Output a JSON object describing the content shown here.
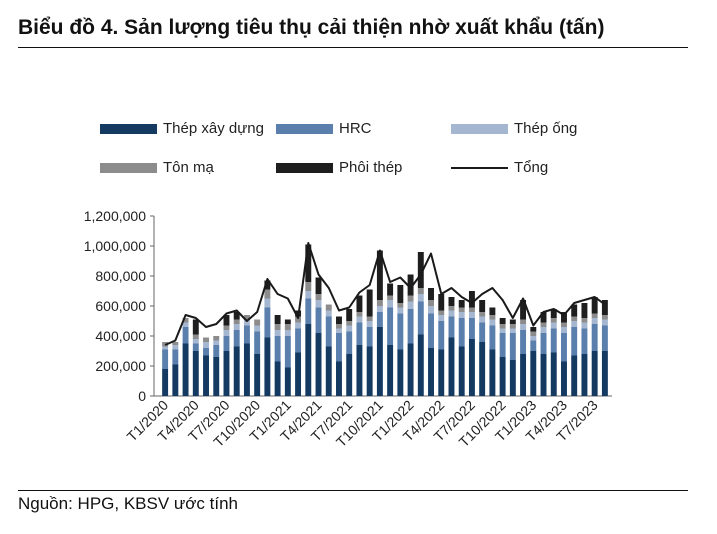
{
  "header": {
    "title": "Biểu đồ 4. Sản lượng tiêu thụ cải thiện nhờ xuất khẩu (tấn)"
  },
  "footer": {
    "source": "Nguồn: HPG, KBSV ước tính"
  },
  "colors": {
    "thep_xay_dung": "#143a62",
    "hrc": "#5a7fad",
    "thep_ong": "#a5b7d0",
    "ton_ma": "#8c8c8c",
    "phoi_thep": "#1e1e1e",
    "tong": "#1a1a1a"
  },
  "chart_data": {
    "type": "bar",
    "stacked": true,
    "title": "Biểu đồ 4. Sản lượng tiêu thụ cải thiện nhờ xuất khẩu (tấn)",
    "ylim": [
      0,
      1200000
    ],
    "yticks": [
      "1,200,000",
      "1,000,000",
      "800,000",
      "600,000",
      "400,000",
      "200,000",
      "0"
    ],
    "ytick_values": [
      1200000,
      1000000,
      800000,
      600000,
      400000,
      200000,
      0
    ],
    "xtick_labels": [
      "T1/2020",
      "T4/2020",
      "T7/2020",
      "T10/2020",
      "T1/2021",
      "T4/2021",
      "T7/2021",
      "T10/2021",
      "T1/2022",
      "T4/2022",
      "T7/2022",
      "T10/2022",
      "T1/2023",
      "T4/2023",
      "T7/2023"
    ],
    "grid": false,
    "legend_position": "top",
    "categories": [
      "T1/2020",
      "T2/2020",
      "T3/2020",
      "T4/2020",
      "T5/2020",
      "T6/2020",
      "T7/2020",
      "T8/2020",
      "T9/2020",
      "T10/2020",
      "T11/2020",
      "T12/2020",
      "T1/2021",
      "T2/2021",
      "T3/2021",
      "T4/2021",
      "T5/2021",
      "T6/2021",
      "T7/2021",
      "T8/2021",
      "T9/2021",
      "T10/2021",
      "T11/2021",
      "T12/2021",
      "T1/2022",
      "T2/2022",
      "T3/2022",
      "T4/2022",
      "T5/2022",
      "T6/2022",
      "T7/2022",
      "T8/2022",
      "T9/2022",
      "T10/2022",
      "T11/2022",
      "T12/2022",
      "T1/2023",
      "T2/2023",
      "T3/2023",
      "T4/2023",
      "T5/2023",
      "T6/2023",
      "T7/2023",
      "T8/2023"
    ],
    "series": [
      {
        "name": "Thép xây dựng",
        "kind": "bar",
        "values": [
          180000,
          210000,
          350000,
          300000,
          270000,
          260000,
          300000,
          330000,
          350000,
          280000,
          390000,
          230000,
          190000,
          290000,
          480000,
          420000,
          330000,
          230000,
          280000,
          340000,
          330000,
          460000,
          340000,
          310000,
          350000,
          410000,
          320000,
          310000,
          390000,
          330000,
          380000,
          360000,
          310000,
          260000,
          240000,
          280000,
          300000,
          280000,
          290000,
          230000,
          270000,
          280000,
          300000,
          300000
        ]
      },
      {
        "name": "HRC",
        "kind": "bar",
        "values": [
          130000,
          100000,
          110000,
          50000,
          50000,
          80000,
          100000,
          110000,
          120000,
          150000,
          200000,
          170000,
          210000,
          160000,
          170000,
          170000,
          200000,
          190000,
          150000,
          150000,
          130000,
          100000,
          250000,
          240000,
          230000,
          220000,
          230000,
          190000,
          140000,
          190000,
          140000,
          130000,
          160000,
          160000,
          180000,
          160000,
          70000,
          140000,
          160000,
          190000,
          190000,
          170000,
          180000,
          170000
        ]
      },
      {
        "name": "Thép ống",
        "kind": "bar",
        "values": [
          20000,
          30000,
          30000,
          30000,
          40000,
          30000,
          40000,
          40000,
          40000,
          40000,
          60000,
          40000,
          40000,
          40000,
          50000,
          50000,
          40000,
          30000,
          40000,
          40000,
          40000,
          40000,
          50000,
          40000,
          50000,
          50000,
          50000,
          40000,
          40000,
          40000,
          40000,
          40000,
          40000,
          30000,
          30000,
          40000,
          30000,
          40000,
          40000,
          40000,
          40000,
          40000,
          40000,
          40000
        ]
      },
      {
        "name": "Tôn mạ",
        "kind": "bar",
        "values": [
          30000,
          20000,
          30000,
          30000,
          30000,
          30000,
          30000,
          30000,
          30000,
          40000,
          60000,
          40000,
          40000,
          40000,
          60000,
          40000,
          40000,
          30000,
          30000,
          30000,
          30000,
          40000,
          30000,
          30000,
          40000,
          40000,
          40000,
          30000,
          30000,
          30000,
          30000,
          30000,
          30000,
          30000,
          30000,
          30000,
          30000,
          30000,
          30000,
          30000,
          30000,
          30000,
          30000,
          30000
        ]
      },
      {
        "name": "Phôi thép",
        "kind": "bar",
        "values": [
          0,
          0,
          0,
          100000,
          0,
          0,
          70000,
          50000,
          0,
          0,
          60000,
          60000,
          30000,
          40000,
          250000,
          110000,
          0,
          50000,
          80000,
          110000,
          180000,
          330000,
          80000,
          120000,
          140000,
          240000,
          80000,
          110000,
          60000,
          50000,
          110000,
          80000,
          50000,
          40000,
          30000,
          130000,
          30000,
          70000,
          60000,
          70000,
          80000,
          100000,
          110000,
          100000
        ]
      },
      {
        "name": "Tổng",
        "kind": "line",
        "values": [
          340000,
          370000,
          540000,
          520000,
          460000,
          480000,
          550000,
          570000,
          500000,
          560000,
          780000,
          680000,
          650000,
          520000,
          1020000,
          810000,
          720000,
          570000,
          590000,
          690000,
          740000,
          970000,
          760000,
          790000,
          720000,
          810000,
          950000,
          680000,
          720000,
          660000,
          620000,
          680000,
          720000,
          640000,
          520000,
          650000,
          470000,
          560000,
          580000,
          540000,
          620000,
          640000,
          660000,
          610000
        ]
      }
    ]
  }
}
